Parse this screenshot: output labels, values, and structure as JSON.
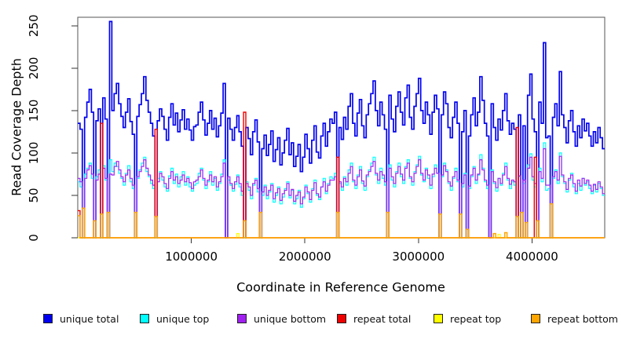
{
  "chart_data": {
    "type": "line",
    "style": "step",
    "title": "",
    "xlabel": "Coordinate in Reference Genome",
    "ylabel": "Read Coverage Depth",
    "xlim": [
      0,
      4640000
    ],
    "ylim": [
      0,
      260
    ],
    "grid": false,
    "legend_position": "bottom",
    "x_window_start": 0,
    "x_window_step": 20000,
    "x_ticks": [
      {
        "value": 1000000,
        "label": "1000000"
      },
      {
        "value": 2000000,
        "label": "2000000"
      },
      {
        "value": 3000000,
        "label": "3000000"
      },
      {
        "value": 4000000,
        "label": "4000000"
      }
    ],
    "y_ticks": [
      {
        "value": 0,
        "label": "0"
      },
      {
        "value": 50,
        "label": "50"
      },
      {
        "value": 100,
        "label": "100"
      },
      {
        "value": 150,
        "label": "150"
      },
      {
        "value": 200,
        "label": "200"
      },
      {
        "value": 250,
        "label": "250"
      }
    ],
    "series": [
      {
        "name": "unique total",
        "color": "#0000EE",
        "values": [
          135,
          128,
          0,
          142,
          160,
          175,
          148,
          0,
          138,
          152,
          0,
          165,
          140,
          0,
          255,
          150,
          170,
          182,
          158,
          143,
          130,
          148,
          164,
          137,
          122,
          0,
          143,
          157,
          170,
          190,
          162,
          148,
          135,
          120,
          0,
          138,
          152,
          143,
          128,
          115,
          142,
          158,
          133,
          147,
          125,
          139,
          151,
          128,
          140,
          127,
          115,
          131,
          133,
          148,
          160,
          139,
          121,
          135,
          150,
          128,
          141,
          119,
          132,
          147,
          182,
          0,
          141,
          128,
          115,
          130,
          144,
          125,
          108,
          0,
          130,
          117,
          98,
          125,
          139,
          113,
          0,
          105,
          121,
          97,
          110,
          126,
          90,
          104,
          118,
          86,
          100,
          115,
          129,
          98,
          112,
          84,
          96,
          110,
          78,
          95,
          122,
          105,
          88,
          115,
          132,
          101,
          94,
          120,
          135,
          108,
          125,
          140,
          135,
          148,
          0,
          130,
          116,
          142,
          128,
          155,
          170,
          135,
          120,
          147,
          163,
          132,
          118,
          145,
          158,
          170,
          185,
          150,
          132,
          160,
          145,
          128,
          0,
          168,
          140,
          125,
          155,
          172,
          148,
          133,
          165,
          180,
          142,
          128,
          155,
          170,
          188,
          150,
          135,
          160,
          145,
          122,
          148,
          168,
          152,
          0,
          145,
          172,
          158,
          130,
          118,
          142,
          160,
          135,
          0,
          125,
          150,
          0,
          120,
          145,
          165,
          132,
          148,
          190,
          162,
          135,
          120,
          0,
          158,
          130,
          115,
          140,
          127,
          150,
          170,
          138,
          122,
          135,
          128,
          0,
          145,
          0,
          132,
          0,
          168,
          193,
          140,
          125,
          0,
          160,
          135,
          230,
          118,
          120,
          0,
          142,
          158,
          132,
          196,
          145,
          130,
          112,
          138,
          150,
          125,
          108,
          132,
          118,
          140,
          126,
          135,
          120,
          108,
          125,
          112,
          130,
          118,
          105
        ]
      },
      {
        "name": "unique top",
        "color": "#00FFFF",
        "values": [
          66,
          60,
          0,
          75,
          82,
          88,
          70,
          0,
          72,
          80,
          0,
          85,
          68,
          0,
          92,
          78,
          88,
          84,
          76,
          70,
          62,
          76,
          85,
          66,
          58,
          0,
          70,
          80,
          88,
          95,
          78,
          72,
          64,
          58,
          0,
          70,
          78,
          68,
          60,
          55,
          73,
          82,
          64,
          75,
          60,
          72,
          78,
          62,
          72,
          60,
          55,
          62,
          64,
          76,
          82,
          68,
          58,
          66,
          78,
          62,
          70,
          56,
          64,
          75,
          92,
          0,
          68,
          62,
          55,
          63,
          74,
          60,
          50,
          0,
          66,
          56,
          46,
          62,
          70,
          54,
          0,
          50,
          62,
          46,
          54,
          64,
          42,
          50,
          60,
          40,
          48,
          58,
          66,
          47,
          56,
          40,
          46,
          56,
          36,
          46,
          62,
          52,
          42,
          58,
          68,
          50,
          45,
          60,
          70,
          52,
          64,
          72,
          70,
          76,
          0,
          64,
          56,
          72,
          62,
          80,
          88,
          66,
          58,
          74,
          84,
          64,
          56,
          72,
          80,
          88,
          95,
          74,
          64,
          82,
          70,
          62,
          0,
          86,
          68,
          60,
          78,
          88,
          72,
          64,
          84,
          92,
          70,
          62,
          78,
          86,
          96,
          74,
          66,
          82,
          70,
          58,
          72,
          86,
          76,
          0,
          72,
          88,
          80,
          64,
          56,
          70,
          82,
          66,
          0,
          60,
          76,
          0,
          58,
          72,
          84,
          64,
          74,
          98,
          82,
          66,
          58,
          0,
          80,
          64,
          55,
          70,
          62,
          76,
          88,
          68,
          58,
          66,
          62,
          0,
          72,
          0,
          64,
          0,
          86,
          99,
          68,
          60,
          0,
          82,
          66,
          112,
          56,
          58,
          0,
          70,
          80,
          64,
          100,
          72,
          64,
          54,
          68,
          76,
          60,
          52,
          64,
          56,
          70,
          62,
          66,
          58,
          52,
          62,
          54,
          64,
          58,
          50
        ]
      },
      {
        "name": "unique bottom",
        "color": "#A020F0",
        "values": [
          70,
          66,
          0,
          70,
          80,
          85,
          75,
          0,
          68,
          75,
          0,
          82,
          70,
          0,
          75,
          74,
          84,
          90,
          80,
          72,
          66,
          74,
          80,
          70,
          62,
          0,
          72,
          78,
          84,
          92,
          82,
          74,
          68,
          62,
          0,
          66,
          76,
          72,
          64,
          58,
          70,
          78,
          68,
          72,
          64,
          68,
          74,
          66,
          70,
          65,
          58,
          66,
          68,
          72,
          80,
          70,
          62,
          68,
          74,
          66,
          72,
          60,
          66,
          72,
          88,
          0,
          72,
          64,
          58,
          66,
          72,
          64,
          55,
          0,
          64,
          60,
          50,
          64,
          68,
          58,
          0,
          54,
          60,
          50,
          56,
          62,
          46,
          53,
          58,
          44,
          52,
          56,
          64,
          50,
          57,
          43,
          50,
          54,
          40,
          48,
          60,
          54,
          45,
          56,
          65,
          52,
          48,
          60,
          66,
          55,
          62,
          68,
          68,
          72,
          0,
          66,
          60,
          70,
          66,
          76,
          84,
          68,
          62,
          72,
          80,
          67,
          61,
          74,
          78,
          84,
          90,
          76,
          68,
          78,
          74,
          66,
          0,
          82,
          72,
          64,
          76,
          84,
          75,
          68,
          82,
          88,
          72,
          66,
          76,
          84,
          92,
          76,
          68,
          80,
          74,
          62,
          75,
          82,
          76,
          0,
          74,
          85,
          78,
          66,
          61,
          72,
          78,
          68,
          0,
          64,
          74,
          0,
          61,
          74,
          82,
          68,
          75,
          92,
          80,
          68,
          62,
          0,
          78,
          66,
          59,
          70,
          64,
          74,
          84,
          70,
          63,
          68,
          66,
          0,
          73,
          0,
          68,
          0,
          82,
          95,
          72,
          64,
          0,
          78,
          70,
          105,
          62,
          62,
          0,
          72,
          78,
          68,
          96,
          74,
          66,
          57,
          70,
          74,
          64,
          55,
          68,
          61,
          70,
          64,
          68,
          62,
          55,
          63,
          57,
          66,
          60,
          52
        ]
      },
      {
        "name": "repeat total",
        "color": "#EE0000",
        "length": 232,
        "sparse": {
          "default": 0,
          "spikes": {
            "0": 32,
            "10": 135,
            "34": 128,
            "73": 148,
            "114": 95,
            "193": 130,
            "201": 95
          }
        }
      },
      {
        "name": "repeat top",
        "color": "#FFFF00",
        "length": 232,
        "sparse": {
          "default": 0,
          "spikes": {
            "70": 5,
            "185": 4
          }
        }
      },
      {
        "name": "repeat bottom",
        "color": "#FFA500",
        "length": 232,
        "sparse": {
          "default": 0,
          "spikes": {
            "0": 26,
            "2": 35,
            "7": 20,
            "10": 28,
            "13": 30,
            "25": 30,
            "34": 25,
            "73": 20,
            "80": 30,
            "114": 30,
            "136": 30,
            "159": 28,
            "168": 28,
            "171": 10,
            "183": 5,
            "188": 6,
            "193": 25,
            "195": 30,
            "197": 18,
            "202": 20,
            "208": 40
          }
        }
      }
    ]
  }
}
